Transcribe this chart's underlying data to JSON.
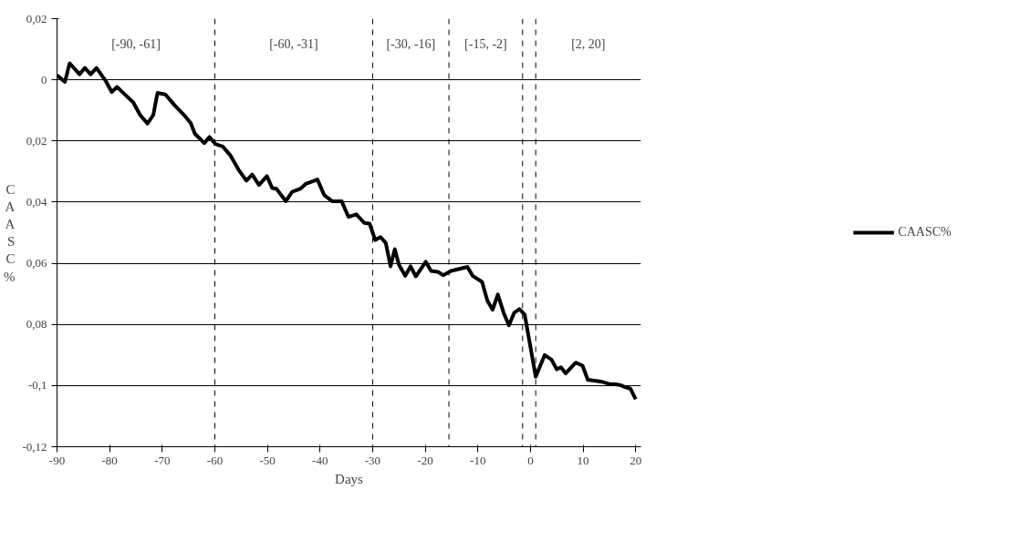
{
  "chart_data": {
    "type": "line",
    "xlabel": "Days",
    "ylabel": "CAASC%",
    "legend": "right",
    "grid": "y",
    "marker": "none",
    "line_style": "solid",
    "xlim": [
      -90,
      21
    ],
    "ylim": [
      -0.12,
      0.02
    ],
    "xticks": [
      -90,
      -80,
      -70,
      -60,
      -50,
      -40,
      -30,
      -20,
      -10,
      0,
      10,
      20
    ],
    "yticks": [
      {
        "value": 0.02,
        "label": "0,02"
      },
      0,
      {
        "value": -0.02,
        "label": "0,02"
      },
      {
        "value": -0.04,
        "label": "0,04"
      },
      {
        "value": -0.06,
        "label": "0,06"
      },
      {
        "value": -0.08,
        "label": "0,08"
      },
      {
        "value": -0.1,
        "label": "-0,1"
      },
      {
        "value": -0.12,
        "label": "-0,12"
      }
    ],
    "series": [
      {
        "name": "CAASC%",
        "color": "#000000",
        "x": [
          -90,
          -88.5,
          -87.6,
          -85.7,
          -84.7,
          -83.6,
          -82.5,
          -80.8,
          -79.6,
          -78.6,
          -76.8,
          -75.5,
          -74.2,
          -72.8,
          -71.7,
          -70.9,
          -69.4,
          -67.6,
          -65.6,
          -64.6,
          -63.8,
          -62,
          -61,
          -59.9,
          -58.5,
          -57,
          -55.5,
          -54,
          -52.9,
          -51.6,
          -50.1,
          -49.1,
          -48.3,
          -46.5,
          -45.3,
          -43.7,
          -42.7,
          -40.5,
          -39.2,
          -37.7,
          -35.9,
          -34.6,
          -33.1,
          -31.6,
          -30.6,
          -29.5,
          -28.5,
          -27.5,
          -26.6,
          -25.8,
          -25,
          -23.8,
          -22.8,
          -21.8,
          -19.9,
          -18.9,
          -17.6,
          -16.6,
          -15.1,
          -12,
          -11,
          -9.2,
          -8.2,
          -7.2,
          -6.2,
          -5.1,
          -4.1,
          -3.1,
          -2.1,
          -1.1,
          1,
          2.7,
          4,
          5,
          5.8,
          6.7,
          8.6,
          9.9,
          10.9,
          12.2,
          13.7,
          15,
          16,
          17,
          18,
          19,
          20
        ],
        "values": [
          0.0015,
          -0.0007,
          0.0054,
          0.0018,
          0.0039,
          0.0018,
          0.0039,
          -0.0002,
          -0.004,
          -0.0023,
          -0.0053,
          -0.0074,
          -0.0115,
          -0.0143,
          -0.0115,
          -0.0043,
          -0.0048,
          -0.0084,
          -0.012,
          -0.0141,
          -0.0176,
          -0.0207,
          -0.0187,
          -0.021,
          -0.0218,
          -0.0248,
          -0.0294,
          -0.033,
          -0.031,
          -0.0344,
          -0.0315,
          -0.0354,
          -0.0356,
          -0.0397,
          -0.0366,
          -0.0356,
          -0.034,
          -0.0326,
          -0.0377,
          -0.0397,
          -0.0397,
          -0.0448,
          -0.044,
          -0.0468,
          -0.047,
          -0.0524,
          -0.0514,
          -0.0534,
          -0.061,
          -0.0554,
          -0.0605,
          -0.0641,
          -0.061,
          -0.0643,
          -0.0595,
          -0.0625,
          -0.0628,
          -0.0639,
          -0.0625,
          -0.0612,
          -0.0641,
          -0.0661,
          -0.0722,
          -0.0752,
          -0.0702,
          -0.0762,
          -0.0803,
          -0.0762,
          -0.075,
          -0.0768,
          -0.0971,
          -0.09,
          -0.0915,
          -0.0947,
          -0.094,
          -0.096,
          -0.0925,
          -0.0935,
          -0.0981,
          -0.0984,
          -0.0988,
          -0.0995,
          -0.0995,
          -0.0998,
          -0.1005,
          -0.101,
          -0.1045
        ]
      }
    ],
    "ref_lines": [
      {
        "axis": "x",
        "value": -60,
        "color": "#000000",
        "line_style": "dashed"
      },
      {
        "axis": "x",
        "value": -30,
        "color": "#000000",
        "line_style": "dashed"
      },
      {
        "axis": "x",
        "value": -15.5,
        "color": "#000000",
        "line_style": "dashed"
      },
      {
        "axis": "x",
        "value": -1.5,
        "color": "#000000",
        "line_style": "dashed"
      },
      {
        "axis": "x",
        "value": 1,
        "color": "#000000",
        "line_style": "dashed"
      }
    ],
    "annotations": [
      "[-90, -61]",
      "[-60, -31]",
      "[-30, -16]",
      "[-15, -2]",
      "[2, 20]"
    ]
  }
}
